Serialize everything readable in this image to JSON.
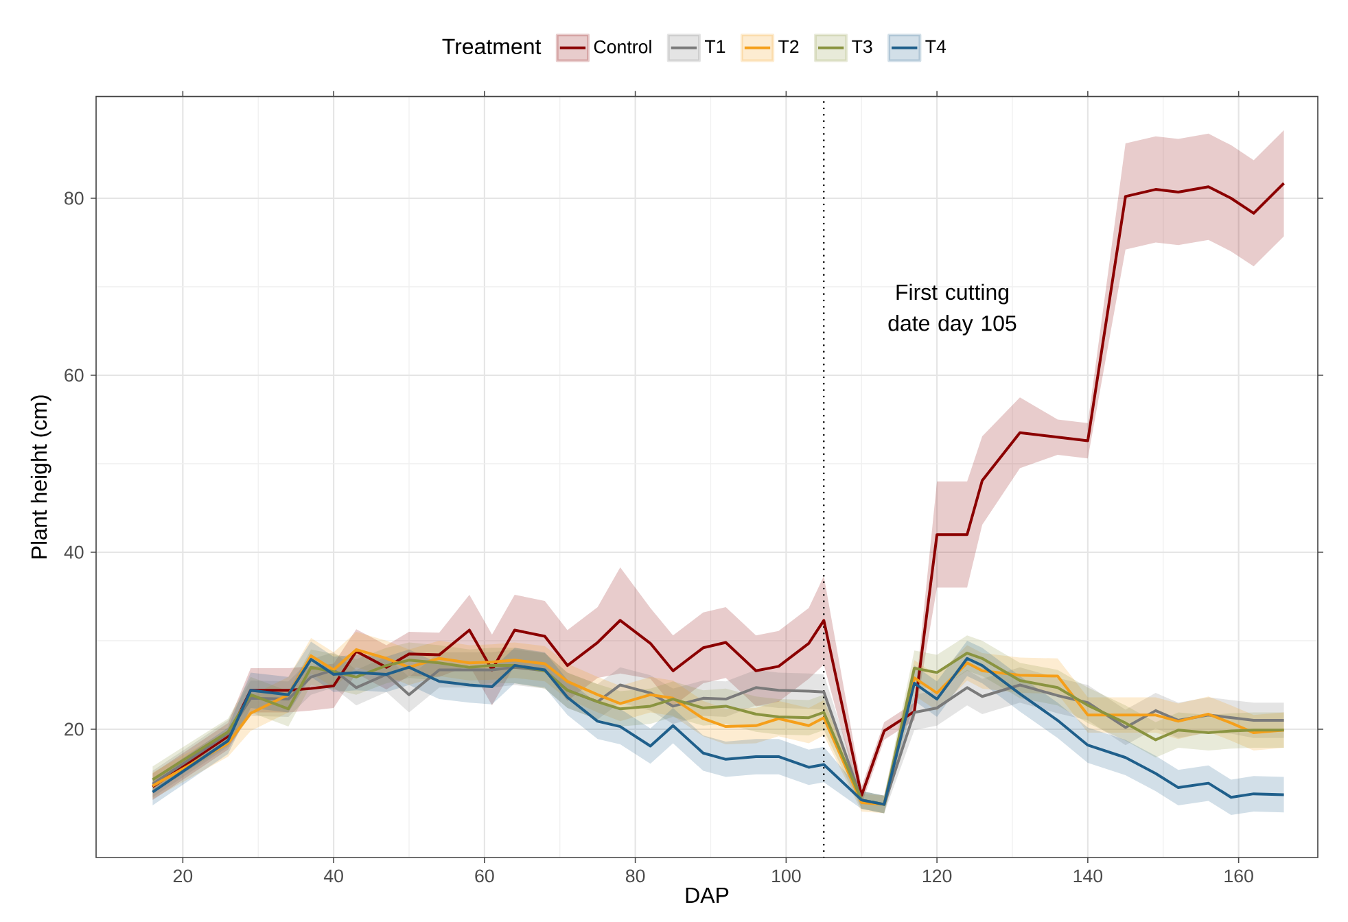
{
  "chart_data": {
    "type": "line",
    "xlabel": "DAP",
    "ylabel": "Plant height (cm)",
    "legend_title": "Treatment",
    "legend": "top",
    "grid": true,
    "line_style": "solid",
    "xlim": [
      8.5,
      170.5
    ],
    "ylim": [
      5.5,
      91.5
    ],
    "xticks": [
      20,
      40,
      60,
      80,
      100,
      120,
      140,
      160
    ],
    "yticks": [
      20,
      40,
      60,
      80
    ],
    "x": [
      16,
      26,
      29,
      34,
      37,
      40,
      43,
      47,
      50,
      54,
      58,
      61,
      64,
      68,
      71,
      75,
      78,
      82,
      85,
      89,
      92,
      96,
      99,
      103,
      105,
      110,
      113,
      117,
      120,
      124,
      126,
      131,
      136,
      140,
      145,
      149,
      152,
      156,
      159,
      162,
      166
    ],
    "ref_lines": [
      {
        "axis": "x",
        "value": 105,
        "label": "First cutting date day 105",
        "color": "#000000",
        "line_style": "dotted"
      }
    ],
    "series": [
      {
        "name": "Control",
        "color": "#8b0000",
        "values": [
          13.5,
          19.2,
          24.4,
          24.4,
          24.6,
          24.9,
          28.8,
          27,
          28.5,
          28.4,
          31.2,
          26.7,
          31.2,
          30.5,
          27.2,
          29.8,
          32.3,
          29.7,
          26.6,
          29.2,
          29.8,
          26.6,
          27.1,
          29.7,
          32.3,
          12.5,
          19.8,
          22,
          42,
          42,
          48.1,
          53.5,
          53,
          52.6,
          80.2,
          81,
          80.7,
          81.3,
          80,
          78.3,
          81.7
        ],
        "lower": [
          12,
          17.7,
          21.9,
          21.9,
          22.1,
          22.4,
          26.3,
          24.5,
          26,
          25.9,
          27.2,
          22.7,
          27.2,
          26.5,
          23.2,
          25.8,
          26.3,
          25.7,
          22.6,
          25.2,
          25.8,
          22.6,
          23.1,
          25.7,
          27.3,
          11.5,
          18.8,
          21,
          36,
          36,
          43.1,
          49.5,
          51,
          50.6,
          74.2,
          75,
          74.7,
          75.3,
          74,
          72.3,
          75.7
        ],
        "upper": [
          15,
          20.7,
          26.9,
          26.9,
          27.1,
          27.4,
          31.3,
          29.5,
          31,
          30.9,
          35.2,
          30.7,
          35.2,
          34.5,
          31.2,
          33.8,
          38.3,
          33.7,
          30.6,
          33.2,
          33.8,
          30.6,
          31.1,
          33.7,
          37.3,
          13.5,
          20.8,
          23,
          48,
          48,
          53.1,
          57.5,
          55,
          54.6,
          86.2,
          87,
          86.7,
          87.3,
          86,
          84.3,
          87.7
        ]
      },
      {
        "name": "T1",
        "color": "#7a7a7a",
        "values": [
          13.8,
          19.5,
          23.5,
          23.4,
          25.9,
          26.7,
          24.7,
          26.2,
          23.9,
          26.7,
          26.7,
          26.7,
          27,
          26.6,
          24.4,
          23.1,
          25,
          24.1,
          22.6,
          23.5,
          23.4,
          24.7,
          24.4,
          24.3,
          24.2,
          12,
          11.5,
          21.9,
          22.4,
          24.7,
          23.7,
          25,
          23.8,
          23,
          20.2,
          22.1,
          21,
          21.6,
          21.3,
          21,
          21
        ],
        "lower": [
          12.3,
          18,
          21.5,
          21.4,
          23.9,
          24.7,
          22.7,
          24.2,
          21.9,
          24.7,
          24.7,
          24.7,
          25,
          24.6,
          22.4,
          21.1,
          23,
          22.1,
          20.6,
          21.5,
          21.4,
          22.7,
          22.4,
          22.3,
          22.2,
          11,
          10.5,
          19.9,
          20.4,
          22.7,
          21.7,
          23,
          21.8,
          21,
          18.2,
          20.1,
          19,
          19.6,
          19.5,
          19,
          19
        ],
        "upper": [
          15.3,
          21,
          25.5,
          25.4,
          27.9,
          28.7,
          26.7,
          28.2,
          25.9,
          28.7,
          28.7,
          28.7,
          29,
          28.6,
          26.4,
          25.1,
          27,
          26.1,
          24.6,
          25.5,
          25.4,
          26.7,
          26.4,
          26.3,
          26.2,
          13,
          12.5,
          23.9,
          24.4,
          26.7,
          25.7,
          27,
          25.8,
          25,
          22.2,
          24.1,
          23,
          23.6,
          23.3,
          23,
          23
        ]
      },
      {
        "name": "T2",
        "color": "#f59f1a",
        "values": [
          13.6,
          18.4,
          21.8,
          23.9,
          28.3,
          26.7,
          29,
          28,
          27,
          28,
          27.5,
          27.6,
          27.8,
          27.4,
          25.4,
          23.9,
          22.9,
          23.9,
          23.5,
          21.2,
          20.3,
          20.4,
          21.2,
          20.4,
          21.3,
          11.7,
          11.5,
          25.8,
          24.1,
          27.5,
          26.6,
          26.1,
          26,
          21.6,
          21.6,
          21.6,
          20.9,
          21.7,
          20.7,
          19.6,
          19.9
        ],
        "lower": [
          12.1,
          16.9,
          19.8,
          21.9,
          26.3,
          24.7,
          27,
          26,
          25,
          26,
          25.5,
          25.6,
          25.8,
          25.4,
          23.4,
          21.9,
          20.9,
          21.9,
          21.5,
          19.2,
          18.3,
          18.4,
          19.2,
          18.4,
          19.3,
          10.7,
          10.5,
          23.8,
          22.1,
          25.5,
          24.6,
          24.1,
          24,
          19.6,
          19.6,
          19.6,
          18.9,
          19.7,
          18.7,
          17.6,
          17.9
        ],
        "upper": [
          15.1,
          19.9,
          23.8,
          25.9,
          30.3,
          28.7,
          31,
          30,
          29,
          30,
          29.5,
          29.6,
          29.8,
          29.4,
          27.4,
          25.9,
          24.9,
          25.9,
          25.5,
          23.2,
          22.3,
          22.4,
          23.2,
          22.4,
          23.3,
          12.7,
          12.5,
          27.8,
          26.1,
          29.5,
          28.6,
          28.1,
          28,
          23.6,
          23.6,
          23.6,
          22.9,
          23.7,
          22.7,
          21.6,
          21.9
        ]
      },
      {
        "name": "T3",
        "color": "#8a9440",
        "values": [
          14.3,
          19.7,
          23.9,
          22.3,
          27,
          26.5,
          25.9,
          27.2,
          27.8,
          27.5,
          27,
          27.2,
          27.2,
          26.6,
          24.4,
          23.1,
          22.3,
          22.6,
          23.4,
          22.4,
          22.6,
          21.7,
          21.4,
          21.3,
          21.9,
          12,
          11.5,
          26.9,
          26.4,
          28.6,
          28,
          25.5,
          24.7,
          22.7,
          20.7,
          18.8,
          19.9,
          19.6,
          19.8,
          19.9,
          19.9
        ],
        "lower": [
          12.8,
          18.2,
          21.9,
          20.3,
          25,
          24.5,
          23.9,
          25.2,
          25.8,
          25.5,
          25,
          25.2,
          25.2,
          24.6,
          22.4,
          21.1,
          20.3,
          20.6,
          21.4,
          20.4,
          20.6,
          19.7,
          19.4,
          19.3,
          19.9,
          11,
          10.5,
          24.9,
          24.4,
          26.6,
          26,
          23.5,
          22.7,
          20.7,
          18.7,
          16.8,
          17.9,
          17.6,
          17.8,
          17.9,
          17.9
        ],
        "upper": [
          15.8,
          21.2,
          25.9,
          24.3,
          29,
          28.5,
          27.9,
          29.2,
          29.8,
          29.5,
          29,
          29.2,
          29.2,
          28.6,
          26.4,
          25.1,
          24.3,
          24.6,
          25.4,
          24.4,
          24.6,
          23.7,
          23.4,
          23.3,
          23.9,
          13,
          12.5,
          28.9,
          28.4,
          30.6,
          30,
          27.5,
          26.7,
          24.7,
          22.7,
          20.8,
          21.9,
          21.6,
          21.8,
          21.9,
          21.9
        ]
      },
      {
        "name": "T4",
        "color": "#1f5f8b",
        "values": [
          12.9,
          18.7,
          24.4,
          23.9,
          27.9,
          26.2,
          26.4,
          26.2,
          27,
          25.4,
          25,
          24.8,
          27.2,
          26.7,
          23.6,
          20.9,
          20.3,
          18.1,
          20.4,
          17.3,
          16.6,
          16.9,
          16.9,
          15.7,
          16,
          12,
          11.5,
          25.2,
          23.4,
          28,
          27.2,
          24,
          21,
          18.2,
          16.8,
          15,
          13.4,
          13.9,
          12.3,
          12.7,
          12.6
        ],
        "lower": [
          11.4,
          17.2,
          22.4,
          21.9,
          25.9,
          24.2,
          24.4,
          24.2,
          25,
          23.4,
          23,
          22.8,
          25.2,
          24.7,
          21.6,
          18.9,
          18.3,
          16.1,
          18.4,
          15.3,
          14.6,
          14.9,
          14.9,
          13.7,
          14,
          11,
          10.5,
          23.2,
          21.4,
          26,
          25.2,
          22,
          19,
          16.2,
          14.8,
          13,
          11.4,
          11.9,
          10.3,
          10.7,
          10.6
        ],
        "upper": [
          14.4,
          20.2,
          26.4,
          25.9,
          29.9,
          28.2,
          28.4,
          28.2,
          29,
          27.4,
          27,
          26.8,
          29.2,
          28.7,
          25.6,
          22.9,
          22.3,
          20.1,
          22.4,
          19.3,
          18.6,
          18.9,
          18.9,
          17.7,
          18,
          13,
          12.5,
          27.2,
          25.4,
          30,
          29.2,
          26,
          23,
          20.2,
          18.8,
          17,
          15.4,
          15.9,
          14.3,
          14.7,
          14.6
        ]
      }
    ]
  }
}
